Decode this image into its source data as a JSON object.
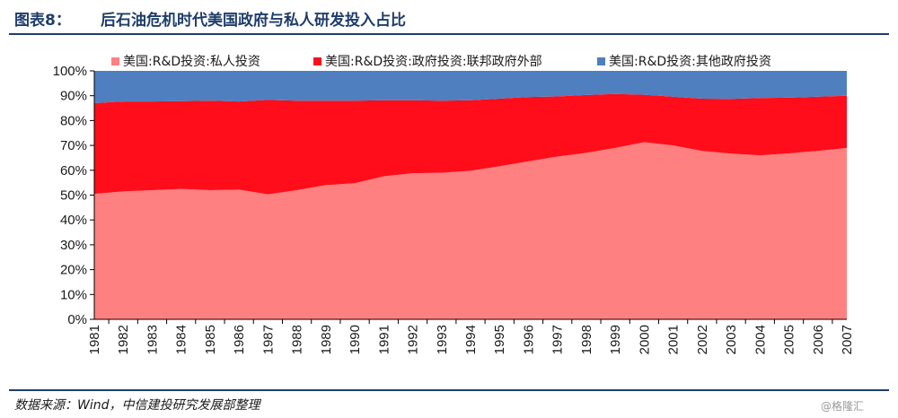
{
  "header": {
    "label": "图表8：",
    "title": "后石油危机时代美国政府与私人研发投入占比"
  },
  "footer": {
    "source": "数据来源：Wind，中信建投研究发展部整理",
    "watermark": "@格隆汇"
  },
  "colors": {
    "header_text": "#1f3d6b",
    "rule": "#1f3d6b"
  },
  "chart_data": {
    "type": "area",
    "stacked": true,
    "percent": true,
    "title": "",
    "xlabel": "",
    "ylabel": "",
    "ylim": [
      0,
      100
    ],
    "y_ticks": [
      "0%",
      "10%",
      "20%",
      "30%",
      "40%",
      "50%",
      "60%",
      "70%",
      "80%",
      "90%",
      "100%"
    ],
    "grid": false,
    "legend_position": "top",
    "categories": [
      "1981",
      "1982",
      "1983",
      "1984",
      "1985",
      "1986",
      "1987",
      "1988",
      "1989",
      "1990",
      "1991",
      "1992",
      "1993",
      "1994",
      "1995",
      "1996",
      "1997",
      "1998",
      "1999",
      "2000",
      "2001",
      "2002",
      "2003",
      "2004",
      "2005",
      "2006",
      "2007"
    ],
    "series": [
      {
        "name": "美国:R&D投资:私人投资",
        "color": "#ff8080",
        "values": [
          50.5,
          51.5,
          52,
          52.5,
          52,
          52.2,
          50.3,
          52,
          54,
          54.8,
          57.6,
          58.8,
          59,
          59.8,
          61.6,
          63.6,
          65.5,
          67,
          69,
          71.3,
          70,
          67.8,
          66.7,
          66,
          66.8,
          67.8,
          69
        ]
      },
      {
        "name": "美国:R&D投资:政府投资:联邦政府外部",
        "color": "#ff0d1a",
        "values": [
          36.5,
          36.2,
          35.7,
          35.3,
          36,
          35.5,
          38,
          36,
          34,
          33.2,
          30.6,
          29.4,
          29,
          28.4,
          27.2,
          25.9,
          24.2,
          23.3,
          21.7,
          19.1,
          19.6,
          21,
          22,
          23.1,
          22.4,
          21.8,
          21
        ]
      },
      {
        "name": "美国:R&D投资:其他政府投资",
        "color": "#4f7fbf",
        "values": [
          13,
          12.3,
          12.3,
          12.2,
          12,
          12.3,
          11.7,
          12,
          12,
          12,
          11.8,
          11.8,
          12,
          11.8,
          11.2,
          10.5,
          10.3,
          9.7,
          9.3,
          9.6,
          10.4,
          11.2,
          11.3,
          10.9,
          10.8,
          10.4,
          10
        ]
      }
    ]
  }
}
